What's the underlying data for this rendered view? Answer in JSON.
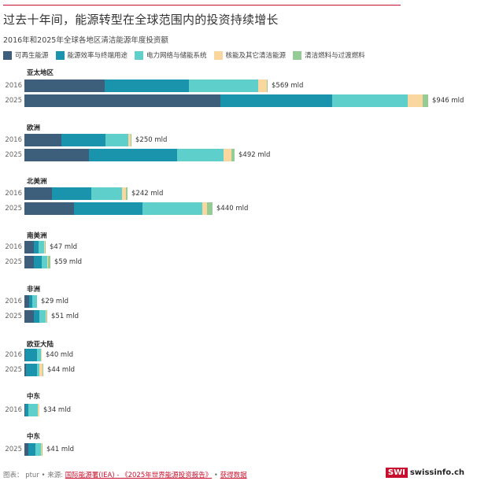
{
  "header": {
    "title": "过去十年间，能源转型在全球范围内的投资持续增长",
    "subtitle": "2016年和2025年全球各地区清洁能源年度投资额"
  },
  "legend": [
    {
      "label": "可再生能源",
      "color": "#3d5f7c"
    },
    {
      "label": "能源效率与终端用途",
      "color": "#1a93ad"
    },
    {
      "label": "电力网络与储能系统",
      "color": "#5ecfca"
    },
    {
      "label": "核能及其它清洁能源",
      "color": "#fbd7a0"
    },
    {
      "label": "清洁燃料与过渡燃料",
      "color": "#95cb95"
    }
  ],
  "chart_data": {
    "type": "bar",
    "orientation": "horizontal-stacked",
    "title": "过去十年间，能源转型在全球范围内的投资持续增长",
    "subtitle": "2016年和2025年全球各地区清洁能源年度投资额",
    "unit": "$ mld (billion USD)",
    "series_names": [
      "可再生能源",
      "能源效率与终端用途",
      "电力网络与储能系统",
      "核能及其它清洁能源",
      "清洁燃料与过渡燃料"
    ],
    "regions": [
      {
        "name": "亚太地区",
        "rows": [
          {
            "year": "2016",
            "total_label": "$569 mld",
            "total": 569,
            "values": [
              188,
              197,
              162,
              20,
              2
            ]
          },
          {
            "year": "2025",
            "total_label": "$946 mld",
            "total": 946,
            "values": [
              459,
              262,
              177,
              35,
              13
            ]
          }
        ]
      },
      {
        "name": "欧洲",
        "rows": [
          {
            "year": "2016",
            "total_label": "$250 mld",
            "total": 250,
            "values": [
              86,
              103,
              53,
              6,
              2
            ]
          },
          {
            "year": "2025",
            "total_label": "$492 mld",
            "total": 492,
            "values": [
              151,
              206,
              109,
              18,
              8
            ]
          }
        ]
      },
      {
        "name": "北美洲",
        "rows": [
          {
            "year": "2016",
            "total_label": "$242 mld",
            "total": 242,
            "values": [
              64,
              92,
              72,
              10,
              4
            ]
          },
          {
            "year": "2025",
            "total_label": "$440 mld",
            "total": 440,
            "values": [
              116,
              160,
              140,
              11,
              13
            ]
          }
        ]
      },
      {
        "name": "南美洲",
        "rows": [
          {
            "year": "2016",
            "total_label": "$47 mld",
            "total": 47,
            "values": [
              22,
              11,
              12,
              1,
              1
            ]
          },
          {
            "year": "2025",
            "total_label": "$59 mld",
            "total": 59,
            "values": [
              22,
              18,
              12,
              1,
              6
            ]
          }
        ]
      },
      {
        "name": "非洲",
        "rows": [
          {
            "year": "2016",
            "total_label": "$29 mld",
            "total": 29,
            "values": [
              11,
              7,
              11,
              0,
              0
            ]
          },
          {
            "year": "2025",
            "total_label": "$51 mld",
            "total": 51,
            "values": [
              22,
              13,
              14,
              1,
              1
            ]
          }
        ]
      },
      {
        "name": "欧亚大陆",
        "rows": [
          {
            "year": "2016",
            "total_label": "$40 mld",
            "total": 40,
            "values": [
              2,
              28,
              9,
              1,
              0
            ]
          },
          {
            "year": "2025",
            "total_label": "$44 mld",
            "total": 44,
            "values": [
              3,
              26,
              6,
              8,
              1
            ]
          }
        ]
      },
      {
        "name": "中东",
        "rows": [
          {
            "year": "2016",
            "total_label": "$34 mld",
            "total": 34,
            "values": [
              2,
              7,
              22,
              3,
              0
            ]
          }
        ]
      },
      {
        "name": "中东",
        "rows": [
          {
            "year": "2025",
            "total_label": "$41 mld",
            "total": 41,
            "values": [
              9,
              17,
              12,
              1,
              2
            ]
          }
        ]
      }
    ],
    "grid": false,
    "legend_position": "top"
  },
  "footer": {
    "prefix": "图表： ptur • 来源: ",
    "source_link": "国际能源署(IEA) - 《2025年世界能源投资报告》",
    "separator": " • ",
    "data_link": "获得数据",
    "brand_badge": "SWI",
    "brand_text": "swissinfo.ch"
  }
}
